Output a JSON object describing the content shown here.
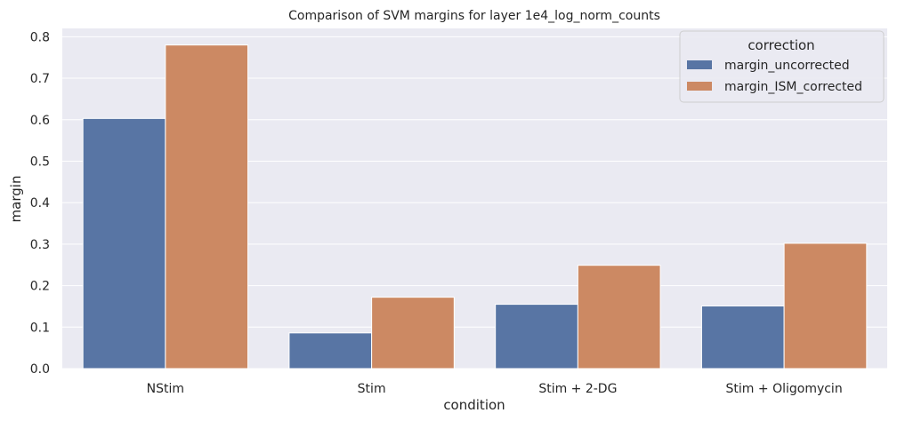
{
  "chart_data": {
    "type": "bar",
    "title": "Comparison of SVM margins for layer 1e4_log_norm_counts",
    "xlabel": "condition",
    "ylabel": "margin",
    "categories": [
      "NStim",
      "Stim",
      "Stim + 2-DG",
      "Stim + Oligomycin"
    ],
    "series": [
      {
        "name": "margin_uncorrected",
        "color": "#5875a4",
        "values": [
          0.603,
          0.086,
          0.155,
          0.151
        ]
      },
      {
        "name": "margin_ISM_corrected",
        "color": "#cc8963",
        "values": [
          0.78,
          0.172,
          0.249,
          0.302
        ]
      }
    ],
    "ylim": [
      0,
      0.82
    ],
    "yticks": [
      "0.0",
      "0.1",
      "0.2",
      "0.3",
      "0.4",
      "0.5",
      "0.6",
      "0.7",
      "0.8"
    ],
    "grid": true,
    "legend": {
      "title": "correction",
      "placement": "top-right"
    },
    "colors": {
      "background": "#eaeaf2",
      "grid": "#ffffff"
    }
  }
}
